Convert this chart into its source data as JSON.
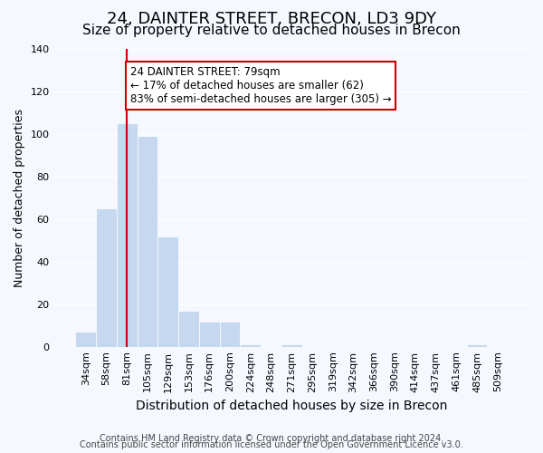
{
  "title": "24, DAINTER STREET, BRECON, LD3 9DY",
  "subtitle": "Size of property relative to detached houses in Brecon",
  "xlabel": "Distribution of detached houses by size in Brecon",
  "ylabel": "Number of detached properties",
  "bar_labels": [
    "34sqm",
    "58sqm",
    "81sqm",
    "105sqm",
    "129sqm",
    "153sqm",
    "176sqm",
    "200sqm",
    "224sqm",
    "248sqm",
    "271sqm",
    "295sqm",
    "319sqm",
    "342sqm",
    "366sqm",
    "390sqm",
    "414sqm",
    "437sqm",
    "461sqm",
    "485sqm",
    "509sqm"
  ],
  "bar_values": [
    7,
    65,
    105,
    99,
    52,
    17,
    12,
    12,
    1,
    0,
    1,
    0,
    0,
    0,
    0,
    0,
    0,
    0,
    0,
    1,
    0
  ],
  "bar_color": "#c5d8f0",
  "bar_edge_color": "#ffffff",
  "property_line_x": 2,
  "property_line_color": "#cc0000",
  "annotation_title": "24 DAINTER STREET: 79sqm",
  "annotation_line1": "← 17% of detached houses are smaller (62)",
  "annotation_line2": "83% of semi-detached houses are larger (305) →",
  "annotation_box_color": "#ffffff",
  "annotation_box_edge": "#cc0000",
  "ylim": [
    0,
    140
  ],
  "yticks": [
    0,
    20,
    40,
    60,
    80,
    100,
    120,
    140
  ],
  "footnote1": "Contains HM Land Registry data © Crown copyright and database right 2024.",
  "footnote2": "Contains public sector information licensed under the Open Government Licence v3.0.",
  "background_color": "#f5f9ff",
  "grid_color": "#ffffff",
  "title_fontsize": 13,
  "subtitle_fontsize": 11,
  "axis_fontsize": 9,
  "tick_fontsize": 8,
  "footnote_fontsize": 7
}
